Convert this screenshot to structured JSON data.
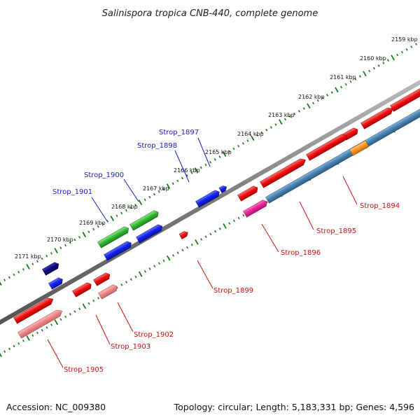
{
  "title": "Salinispora tropica CNB-440, complete genome",
  "footer": {
    "accession": "Accession: NC_009380",
    "summary": "Topology: circular; Length: 5,183,331 bp; Genes: 4,596"
  },
  "colors": {
    "backbone": "#7a7a7a",
    "tick": "#1a7a1a",
    "label_blue": "#1a1acc",
    "label_red": "#cc1111",
    "gene_red": "#ee1111",
    "gene_pink": "#ee8888",
    "gene_blue": "#1122ee",
    "gene_navy": "#0a0a88",
    "gene_green": "#33bb33",
    "gene_magenta": "#ee2299",
    "gene_steel": "#4682b4",
    "gene_orange": "#ff9922"
  },
  "kbp_labels": [
    "2159 kbp",
    "2160 kbp",
    "2161 kbp",
    "2162 kbp",
    "2163 kbp",
    "2164 kbp",
    "2165 kbp",
    "2166 kbp",
    "2167 kbp",
    "2168 kbp",
    "2169 kbp",
    "2170 kbp",
    "2171 kbp"
  ],
  "gene_labels": {
    "strop_1897": "Strop_1897",
    "strop_1898": "Strop_1898",
    "strop_1900": "Strop_1900",
    "strop_1901": "Strop_1901",
    "strop_1894": "Strop_1894",
    "strop_1895": "Strop_1895",
    "strop_1896": "Strop_1896",
    "strop_1899": "Strop_1899",
    "strop_1902": "Strop_1902",
    "strop_1903": "Strop_1903",
    "strop_1905": "Strop_1905"
  }
}
